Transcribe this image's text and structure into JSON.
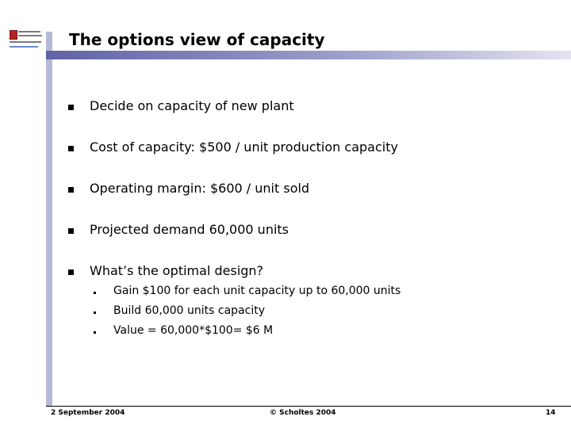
{
  "slide": {
    "title": "The options view of capacity",
    "bullets": [
      "Decide on capacity of new plant",
      "Cost of capacity: $500 / unit production capacity",
      "Operating margin: $600 / unit sold",
      "Projected demand 60,000 units",
      "What’s the optimal design?"
    ],
    "sub_bullets": [
      "Gain $100 for each unit capacity up to 60,000 units",
      "Build 60,000 units capacity",
      "Value = 60,000*$100= $6 M"
    ]
  },
  "footer": {
    "date": "2 September 2004",
    "copyright": "© Scholtes 2004",
    "page_number": "14"
  },
  "colors": {
    "title_bar_start": "#5f63a6",
    "title_bar_end": "#e3e4f1",
    "side_bar": "#b7b9d8"
  },
  "logo": {
    "name": "university-logo"
  }
}
